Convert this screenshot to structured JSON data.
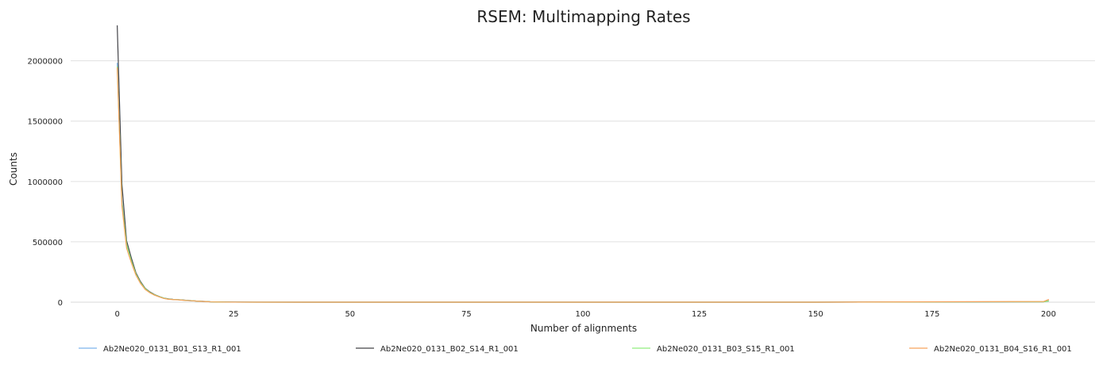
{
  "chart_data": {
    "type": "line",
    "title": "RSEM: Multimapping Rates",
    "xlabel": "Number of alignments",
    "ylabel": "Counts",
    "xlim": [
      -10,
      210
    ],
    "ylim": [
      0,
      2300000
    ],
    "x_ticks": [
      0,
      25,
      50,
      75,
      100,
      125,
      150,
      175,
      200
    ],
    "y_ticks": [
      0,
      500000,
      1000000,
      1500000,
      2000000
    ],
    "grid": "horizontal",
    "legend_position": "bottom",
    "series": [
      {
        "name": "Ab2Ne020_0131_B01_S13_R1_001",
        "color": "#7cb5ec",
        "points": [
          [
            0,
            1980000
          ],
          [
            1,
            850000
          ],
          [
            2,
            470000
          ],
          [
            3,
            340000
          ],
          [
            4,
            230000
          ],
          [
            5,
            160000
          ],
          [
            6,
            110000
          ],
          [
            7,
            80000
          ],
          [
            8,
            60000
          ],
          [
            9,
            45000
          ],
          [
            10,
            32000
          ],
          [
            11,
            25000
          ],
          [
            12,
            22000
          ],
          [
            13,
            20000
          ],
          [
            14,
            17000
          ],
          [
            15,
            14000
          ],
          [
            16,
            12000
          ],
          [
            17,
            9000
          ],
          [
            18,
            7000
          ],
          [
            19,
            5000
          ],
          [
            20,
            3000
          ],
          [
            22,
            1500
          ],
          [
            25,
            500
          ],
          [
            30,
            200
          ],
          [
            50,
            50
          ],
          [
            100,
            10
          ],
          [
            150,
            5
          ],
          [
            199,
            3000
          ],
          [
            200,
            9000
          ]
        ]
      },
      {
        "name": "Ab2Ne020_0131_B02_S14_R1_001",
        "color": "#434348",
        "points": [
          [
            0,
            2290000
          ],
          [
            1,
            980000
          ],
          [
            2,
            510000
          ],
          [
            3,
            370000
          ],
          [
            4,
            245000
          ],
          [
            5,
            170000
          ],
          [
            6,
            115000
          ],
          [
            7,
            85000
          ],
          [
            8,
            63000
          ],
          [
            9,
            47000
          ],
          [
            10,
            34000
          ],
          [
            11,
            27000
          ],
          [
            12,
            23000
          ],
          [
            13,
            21000
          ],
          [
            14,
            18000
          ],
          [
            15,
            15000
          ],
          [
            16,
            12500
          ],
          [
            17,
            9500
          ],
          [
            18,
            7500
          ],
          [
            19,
            5500
          ],
          [
            20,
            3500
          ],
          [
            22,
            1700
          ],
          [
            25,
            600
          ],
          [
            30,
            250
          ],
          [
            50,
            60
          ],
          [
            100,
            12
          ],
          [
            150,
            6
          ],
          [
            199,
            3500
          ],
          [
            200,
            11000
          ]
        ]
      },
      {
        "name": "Ab2Ne020_0131_B03_S15_R1_001",
        "color": "#90ed7d",
        "points": [
          [
            0,
            1950000
          ],
          [
            1,
            830000
          ],
          [
            2,
            480000
          ],
          [
            3,
            345000
          ],
          [
            4,
            235000
          ],
          [
            5,
            162000
          ],
          [
            6,
            112000
          ],
          [
            7,
            81000
          ],
          [
            8,
            61000
          ],
          [
            9,
            46000
          ],
          [
            10,
            33000
          ],
          [
            11,
            26000
          ],
          [
            12,
            22500
          ],
          [
            13,
            20500
          ],
          [
            14,
            17500
          ],
          [
            15,
            14500
          ],
          [
            16,
            12200
          ],
          [
            17,
            9200
          ],
          [
            18,
            7200
          ],
          [
            19,
            5200
          ],
          [
            20,
            3200
          ],
          [
            22,
            1600
          ],
          [
            25,
            550
          ],
          [
            30,
            220
          ],
          [
            50,
            55
          ],
          [
            100,
            11
          ],
          [
            150,
            5
          ],
          [
            199,
            3200
          ],
          [
            200,
            10000
          ]
        ]
      },
      {
        "name": "Ab2Ne020_0131_B04_S16_R1_001",
        "color": "#f7a35c",
        "points": [
          [
            0,
            1940000
          ],
          [
            1,
            800000
          ],
          [
            2,
            450000
          ],
          [
            3,
            330000
          ],
          [
            4,
            225000
          ],
          [
            5,
            155000
          ],
          [
            6,
            105000
          ],
          [
            7,
            78000
          ],
          [
            8,
            58000
          ],
          [
            9,
            44000
          ],
          [
            10,
            31000
          ],
          [
            11,
            24000
          ],
          [
            12,
            21500
          ],
          [
            13,
            19500
          ],
          [
            14,
            16500
          ],
          [
            15,
            13500
          ],
          [
            16,
            11800
          ],
          [
            17,
            8800
          ],
          [
            18,
            6800
          ],
          [
            19,
            4800
          ],
          [
            20,
            2900
          ],
          [
            22,
            1400
          ],
          [
            25,
            480
          ],
          [
            30,
            190
          ],
          [
            50,
            48
          ],
          [
            100,
            9
          ],
          [
            150,
            4
          ],
          [
            199,
            6000
          ],
          [
            200,
            22000
          ]
        ]
      }
    ]
  }
}
